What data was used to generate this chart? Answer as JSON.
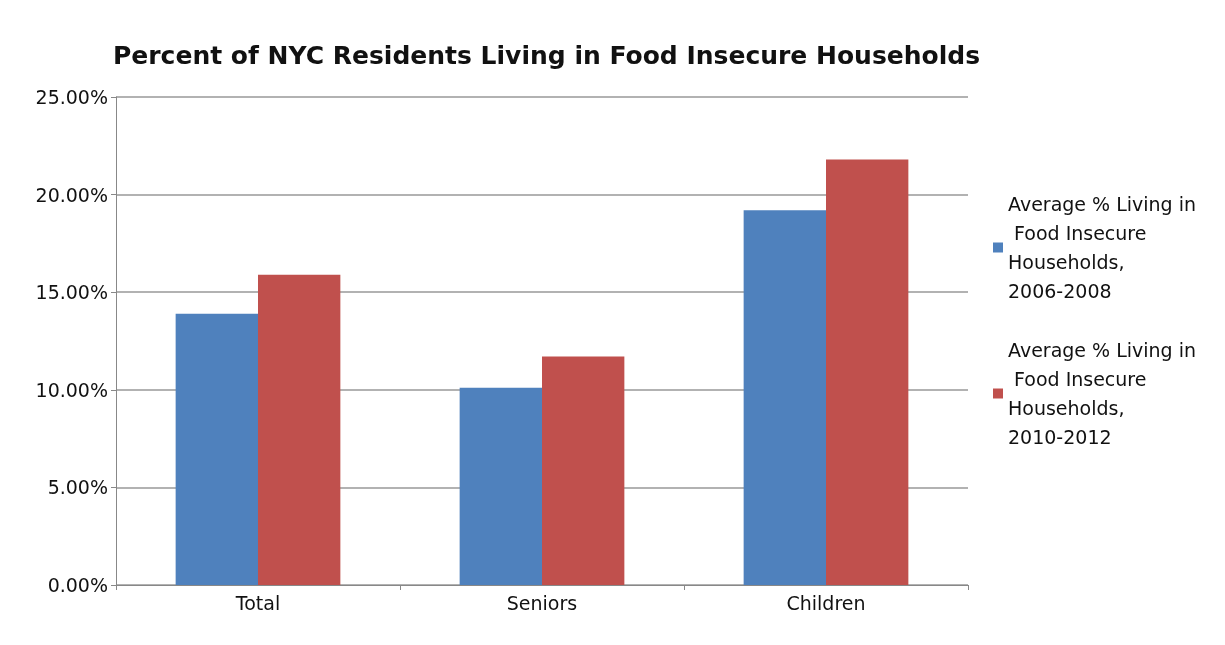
{
  "chart_data": {
    "type": "bar",
    "title": "Percent of NYC Residents Living in Food Insecure Households",
    "categories": [
      "Total",
      "Seniors",
      "Children"
    ],
    "series": [
      {
        "name": "Average % Living in Food Insecure Households, 2006-2008",
        "color": "#4f81bd",
        "values": [
          13.9,
          10.1,
          19.2
        ]
      },
      {
        "name": "Average % Living in Food Insecure Households, 2010-2012",
        "color": "#c0504d",
        "values": [
          15.9,
          11.7,
          21.8
        ]
      }
    ],
    "ylim": [
      0,
      25
    ],
    "yticks": [
      {
        "value": 0,
        "label": "0.00%"
      },
      {
        "value": 5,
        "label": "5.00%"
      },
      {
        "value": 10,
        "label": "10.00%"
      },
      {
        "value": 15,
        "label": "15.00%"
      },
      {
        "value": 20,
        "label": "20.00%"
      },
      {
        "value": 25,
        "label": "25.00%"
      }
    ],
    "grid": "y",
    "legend": "right"
  }
}
